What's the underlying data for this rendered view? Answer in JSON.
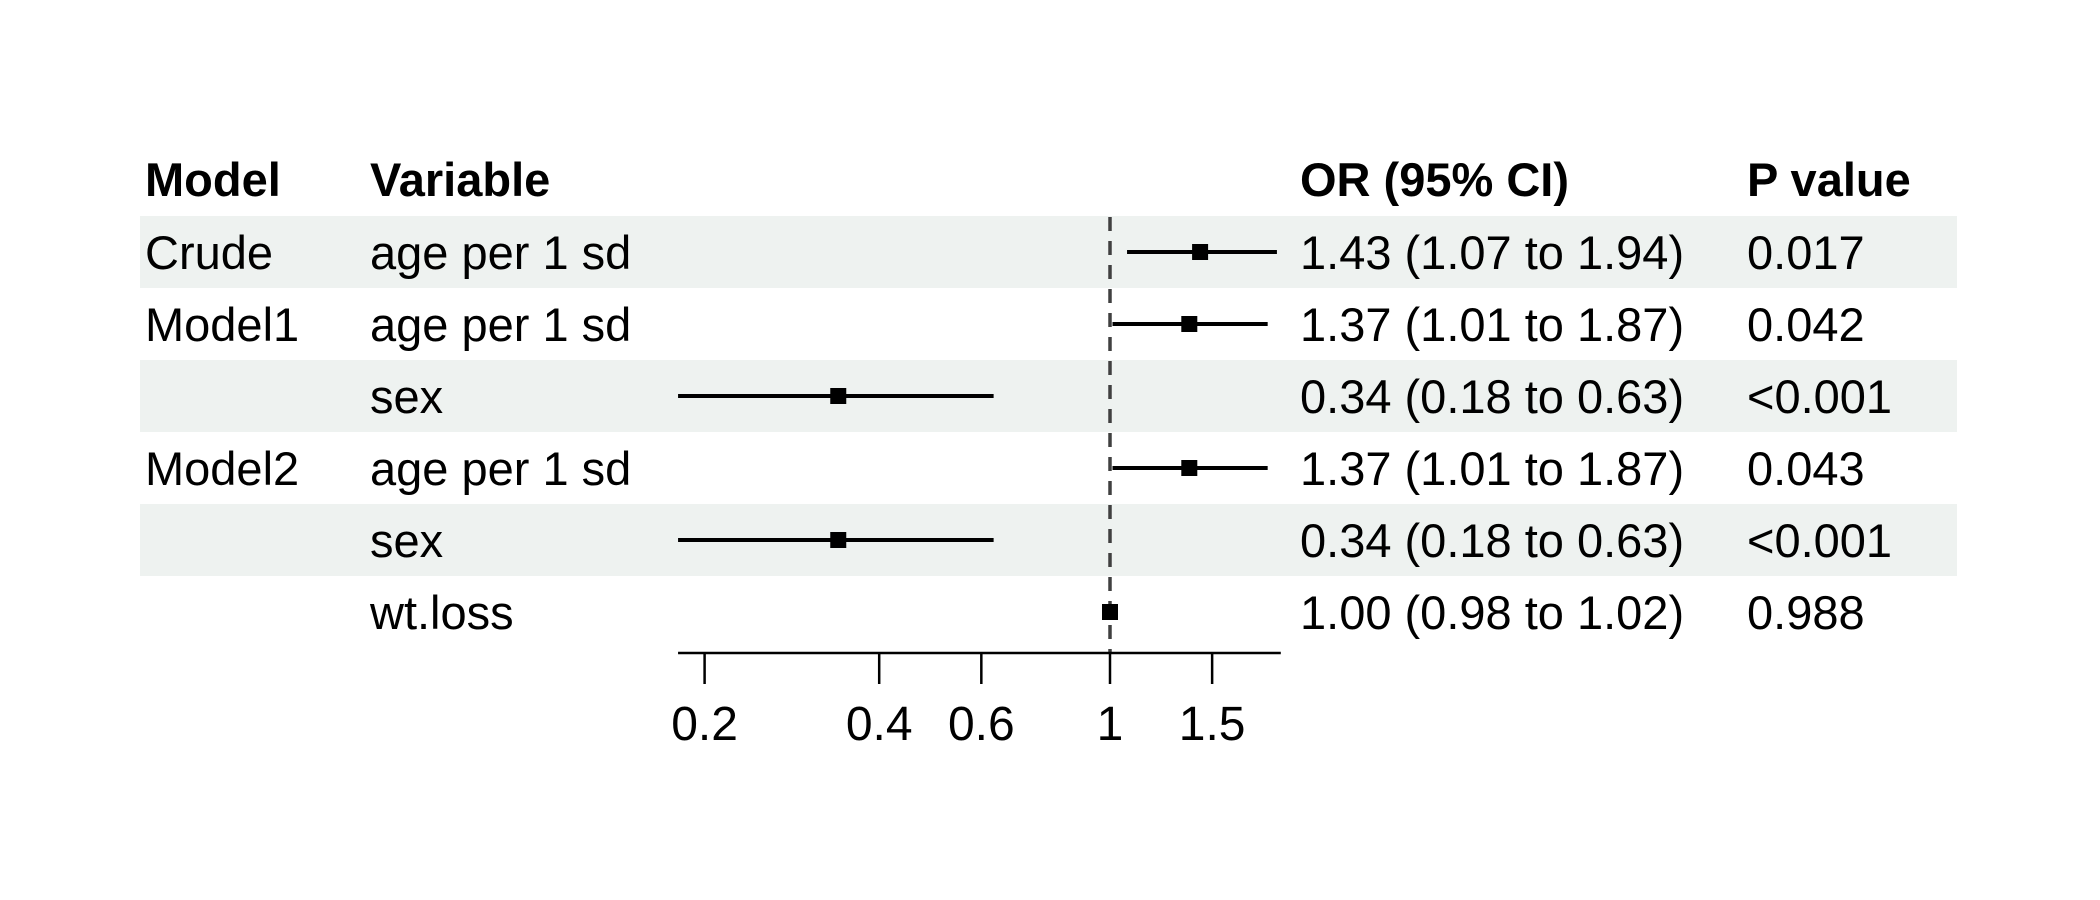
{
  "columns": {
    "model": "Model",
    "variable": "Variable",
    "or_ci": "OR (95% CI)",
    "p": "P value"
  },
  "colors": {
    "row_shading": "#eef2f0",
    "marker": "#000000",
    "ci_line": "#000000",
    "reference_line": "#404040",
    "axis": "#000000",
    "text": "#000000"
  },
  "chart_data": {
    "type": "forest",
    "scale": "log",
    "title": "",
    "xlabel": "",
    "ref_line": 1,
    "xlim": [
      0.18,
      1.97
    ],
    "x_ticks": [
      0.2,
      0.4,
      0.6,
      1,
      1.5
    ],
    "x_tick_labels": [
      "0.2",
      "0.4",
      "0.6",
      "1",
      "1.5"
    ],
    "legend": "none",
    "rows": [
      {
        "model": "Crude",
        "variable": "age per 1 sd",
        "est": 1.43,
        "lo": 1.07,
        "hi": 1.94,
        "or_ci": "1.43 (1.07 to 1.94)",
        "p": "0.017"
      },
      {
        "model": "Model1",
        "variable": "age per 1 sd",
        "est": 1.37,
        "lo": 1.01,
        "hi": 1.87,
        "or_ci": "1.37 (1.01 to 1.87)",
        "p": "0.042"
      },
      {
        "model": "",
        "variable": "sex",
        "est": 0.34,
        "lo": 0.18,
        "hi": 0.63,
        "or_ci": "0.34 (0.18 to 0.63)",
        "p": "<0.001"
      },
      {
        "model": "Model2",
        "variable": "age per 1 sd",
        "est": 1.37,
        "lo": 1.01,
        "hi": 1.87,
        "or_ci": "1.37 (1.01 to 1.87)",
        "p": "0.043"
      },
      {
        "model": "",
        "variable": "sex",
        "est": 0.34,
        "lo": 0.18,
        "hi": 0.63,
        "or_ci": "0.34 (0.18 to 0.63)",
        "p": "<0.001"
      },
      {
        "model": "",
        "variable": "wt.loss",
        "est": 1.0,
        "lo": 0.98,
        "hi": 1.02,
        "or_ci": "1.00 (0.98 to 1.02)",
        "p": "0.988"
      }
    ]
  }
}
